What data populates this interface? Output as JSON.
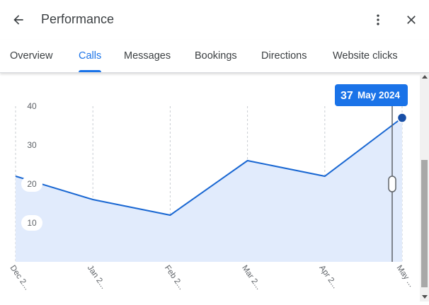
{
  "header": {
    "title": "Performance",
    "back_icon": "arrow-back-icon",
    "more_icon": "more-vert-icon",
    "close_icon": "close-icon"
  },
  "tabs": [
    {
      "label": "Overview",
      "active": false
    },
    {
      "label": "Calls",
      "active": true
    },
    {
      "label": "Messages",
      "active": false
    },
    {
      "label": "Bookings",
      "active": false
    },
    {
      "label": "Directions",
      "active": false
    },
    {
      "label": "Website clicks",
      "active": false
    }
  ],
  "colors": {
    "accent": "#1a73e8",
    "line": "#1967d2",
    "area": "#e1ebfc",
    "tooltip_bg": "#1a73e8",
    "dot": "#174ea6"
  },
  "chart_data": {
    "type": "area",
    "categories": [
      "Dec 2...",
      "Jan 2...",
      "Feb 2...",
      "Mar 2...",
      "Apr 2...",
      "May ..."
    ],
    "values": [
      22,
      16,
      12,
      26,
      22,
      37
    ],
    "ylim": [
      0,
      40
    ],
    "yticks": [
      10,
      20,
      30,
      40
    ],
    "grid": "vertical-dashed",
    "tooltip": {
      "value": "37",
      "label": "May 2024",
      "index": 5
    }
  }
}
